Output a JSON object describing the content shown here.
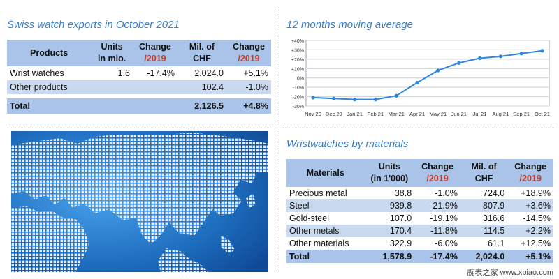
{
  "exports": {
    "title": "Swiss watch exports in October 2021",
    "headers": {
      "col1": "Products",
      "col2_a": "Units",
      "col2_b": "in mio.",
      "col3_a": "Change",
      "col3_b": "/2019",
      "col4_a": "Mil. of",
      "col4_b": "CHF",
      "col5_a": "Change",
      "col5_b": "/2019"
    },
    "rows": [
      {
        "label": "Wrist watches",
        "units": "1.6",
        "change_units": "-17.4%",
        "chf": "2,024.0",
        "change_chf": "+5.1%"
      },
      {
        "label": "Other products",
        "units": "",
        "change_units": "",
        "chf": "102.4",
        "change_chf": "-1.0%"
      }
    ],
    "total": {
      "label": "Total",
      "chf": "2,126.5",
      "change_chf": "+4.8%"
    }
  },
  "moving_average": {
    "title": "12 months moving average"
  },
  "chart_data": {
    "type": "line",
    "title": "12 months moving average",
    "xlabel": "",
    "ylabel": "",
    "categories": [
      "Nov 20",
      "Dec 20",
      "Jan 21",
      "Feb 21",
      "Mar 21",
      "Apr 21",
      "May 21",
      "Jun 21",
      "Jul 21",
      "Aug 21",
      "Sep 21",
      "Oct 21"
    ],
    "values": [
      -21,
      -22,
      -23,
      -23,
      -19,
      -5,
      8,
      16,
      21,
      23,
      26,
      29
    ],
    "y_ticks": [
      "+40%",
      "+30%",
      "+20%",
      "+10%",
      "0%",
      "-10%",
      "-20%",
      "-30%"
    ],
    "ylim": [
      -30,
      40
    ],
    "grid": true,
    "line_color": "#2e86de"
  },
  "materials": {
    "title": "Wristwatches by materials",
    "headers": {
      "col1": "Materials",
      "col2_a": "Units",
      "col2_b": "(in 1'000)",
      "col3_a": "Change",
      "col3_b": "/2019",
      "col4_a": "Mil. of",
      "col4_b": "CHF",
      "col5_a": "Change",
      "col5_b": "/2019"
    },
    "rows": [
      {
        "label": "Precious metal",
        "units": "38.8",
        "change_units": "-1.0%",
        "chf": "724.0",
        "change_chf": "+18.9%"
      },
      {
        "label": "Steel",
        "units": "939.8",
        "change_units": "-21.9%",
        "chf": "807.9",
        "change_chf": "+3.6%"
      },
      {
        "label": "Gold-steel",
        "units": "107.0",
        "change_units": "-19.1%",
        "chf": "316.6",
        "change_chf": "-14.5%"
      },
      {
        "label": "Other metals",
        "units": "170.4",
        "change_units": "-11.8%",
        "chf": "114.5",
        "change_chf": "+2.2%"
      },
      {
        "label": "Other materials",
        "units": "322.9",
        "change_units": "-6.0%",
        "chf": "61.1",
        "change_chf": "+12.5%"
      }
    ],
    "total": {
      "label": "Total",
      "units": "1,578.9",
      "change_units": "-17.4%",
      "chf": "2,024.0",
      "change_chf": "+5.1%"
    }
  },
  "footer": {
    "text": "腕表之家 www.xbiao.com"
  },
  "colors": {
    "accent": "#3a7fc4",
    "header_bg": "#a9c4e8",
    "band_bg": "#c9d9ef",
    "negative_header": "#c0392b",
    "map_bg": "#1f6fc0"
  }
}
